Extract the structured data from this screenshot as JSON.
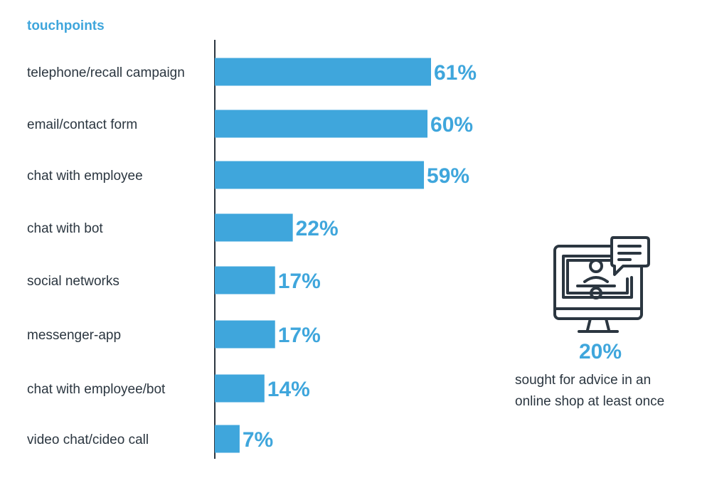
{
  "chart_data": {
    "type": "bar",
    "orientation": "horizontal",
    "axis_title": "touchpoints",
    "categories": [
      "telephone/recall campaign",
      "email/contact form",
      "chat with employee",
      "chat with bot",
      "social networks",
      "messenger-app",
      "chat with employee/bot",
      "video chat/cideo call"
    ],
    "values": [
      61,
      60,
      59,
      22,
      17,
      17,
      14,
      7
    ],
    "value_labels": [
      "61%",
      "60%",
      "59%",
      "22%",
      "17%",
      "17%",
      "14%",
      "7%"
    ],
    "unit": "%",
    "grid": false,
    "colors": {
      "bar": "#3fa6dc",
      "text": "#2b3640",
      "accent": "#3fa6dc"
    }
  },
  "callout": {
    "icon": "monitor-certificate-chat-icon",
    "value": "20%",
    "caption_line1": "sought for advice in an",
    "caption_line2": "online shop at least once"
  }
}
